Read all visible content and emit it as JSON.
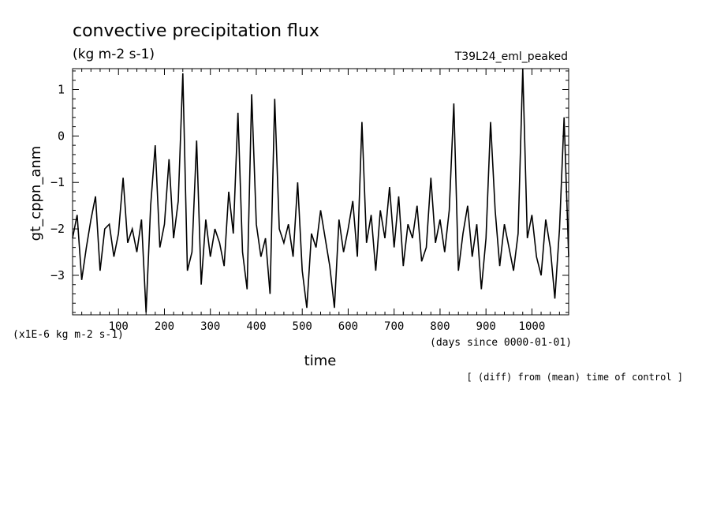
{
  "chart_data": {
    "type": "line",
    "title": "convective precipitation flux",
    "units": "(kg m-2 s-1)",
    "run_label": "T39L24_eml_peaked",
    "xlabel": "time",
    "x_units": "(days since 0000-01-01)",
    "ylabel": "gt_cppn_anm",
    "y_scale_note": "(x1E-6 kg m-2 s-1)",
    "footnote": "[ (diff) from (mean) time of control ]",
    "xlim": [
      0,
      1080
    ],
    "ylim": [
      -3.85,
      1.45
    ],
    "x_ticks": [
      "100",
      "200",
      "300",
      "400",
      "500",
      "600",
      "700",
      "800",
      "900",
      "1000"
    ],
    "y_ticks": [
      "1",
      "0",
      "-1",
      "-2",
      "-3"
    ],
    "grid": false,
    "x": [
      0,
      10,
      20,
      30,
      40,
      50,
      60,
      70,
      80,
      90,
      100,
      110,
      120,
      130,
      140,
      150,
      160,
      170,
      180,
      190,
      200,
      210,
      220,
      230,
      240,
      250,
      260,
      270,
      280,
      290,
      300,
      310,
      320,
      330,
      340,
      350,
      360,
      370,
      380,
      390,
      400,
      410,
      420,
      430,
      440,
      450,
      460,
      470,
      480,
      490,
      500,
      510,
      520,
      530,
      540,
      550,
      560,
      570,
      580,
      590,
      600,
      610,
      620,
      630,
      640,
      650,
      660,
      670,
      680,
      690,
      700,
      710,
      720,
      730,
      740,
      750,
      760,
      770,
      780,
      790,
      800,
      810,
      820,
      830,
      840,
      850,
      860,
      870,
      880,
      890,
      900,
      910,
      920,
      930,
      940,
      950,
      960,
      970,
      980,
      990,
      1000,
      1010,
      1020,
      1030,
      1040,
      1050,
      1060,
      1070,
      1080
    ],
    "values": [
      -2.2,
      -1.7,
      -3.1,
      -2.4,
      -1.8,
      -1.3,
      -2.9,
      -2.0,
      -1.9,
      -2.6,
      -2.1,
      -0.9,
      -2.3,
      -2.0,
      -2.5,
      -1.8,
      -3.8,
      -1.5,
      -0.2,
      -2.4,
      -1.9,
      -0.5,
      -2.2,
      -1.4,
      1.35,
      -2.9,
      -2.5,
      -0.1,
      -3.2,
      -1.8,
      -2.6,
      -2.0,
      -2.3,
      -2.8,
      -1.2,
      -2.1,
      0.5,
      -2.5,
      -3.3,
      0.9,
      -1.9,
      -2.6,
      -2.2,
      -3.4,
      0.8,
      -2.0,
      -2.3,
      -1.9,
      -2.6,
      -1.0,
      -2.9,
      -3.7,
      -2.1,
      -2.4,
      -1.6,
      -2.2,
      -2.8,
      -3.7,
      -1.8,
      -2.5,
      -2.0,
      -1.4,
      -2.6,
      0.3,
      -2.3,
      -1.7,
      -2.9,
      -1.6,
      -2.2,
      -1.1,
      -2.4,
      -1.3,
      -2.8,
      -1.9,
      -2.2,
      -1.5,
      -2.7,
      -2.4,
      -0.9,
      -2.3,
      -1.8,
      -2.5,
      -1.6,
      0.7,
      -2.9,
      -2.1,
      -1.5,
      -2.6,
      -1.9,
      -3.3,
      -2.2,
      0.3,
      -1.6,
      -2.8,
      -1.9,
      -2.4,
      -2.9,
      -2.1,
      1.45,
      -2.2,
      -1.7,
      -2.6,
      -3.0,
      -1.8,
      -2.4,
      -3.5,
      -2.0,
      0.4,
      -2.6
    ]
  }
}
